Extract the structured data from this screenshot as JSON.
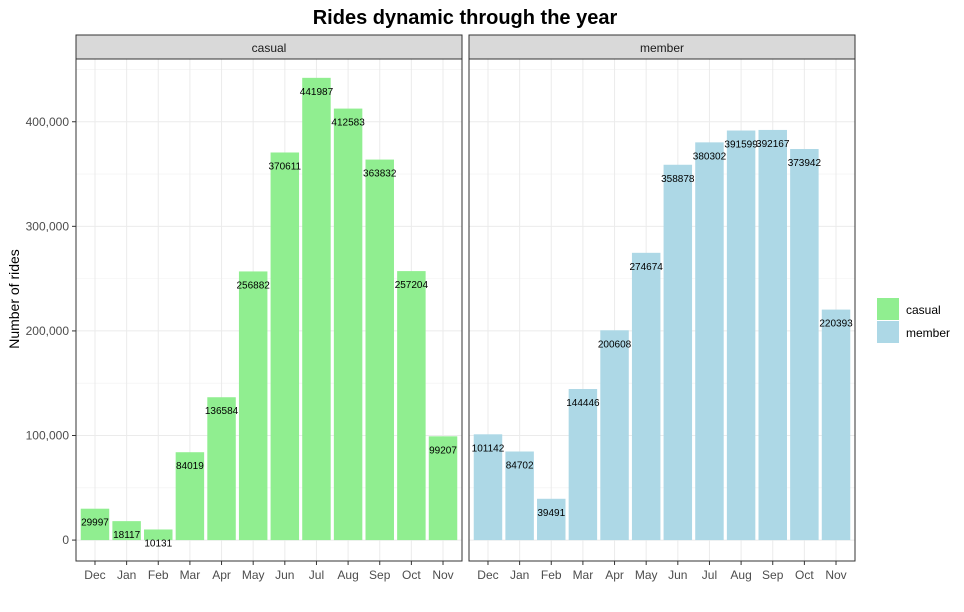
{
  "chart_data": {
    "type": "bar",
    "title": "Rides dynamic through the year",
    "ylabel": "Number of rides",
    "xlabel": "",
    "categories": [
      "Dec",
      "Jan",
      "Feb",
      "Mar",
      "Apr",
      "May",
      "Jun",
      "Jul",
      "Aug",
      "Sep",
      "Oct",
      "Nov"
    ],
    "ylim": [
      -20000,
      460000
    ],
    "yticks": [
      0,
      100000,
      200000,
      300000,
      400000
    ],
    "ytick_labels": [
      "0",
      "100,000",
      "200,000",
      "300,000",
      "400,000"
    ],
    "grid": true,
    "legend_position": "right",
    "facets": [
      {
        "strip_label": "casual",
        "series": "casual",
        "color": "#90EE90",
        "values": [
          29997,
          18117,
          10131,
          84019,
          136584,
          256882,
          370611,
          441987,
          412583,
          363832,
          257204,
          99207
        ]
      },
      {
        "strip_label": "member",
        "series": "member",
        "color": "#ADD8E6",
        "values": [
          101142,
          84702,
          39491,
          144446,
          200608,
          274674,
          358878,
          380302,
          391599,
          392167,
          373942,
          220393
        ]
      }
    ],
    "legend": [
      {
        "name": "casual",
        "color": "#90EE90"
      },
      {
        "name": "member",
        "color": "#ADD8E6"
      }
    ]
  }
}
